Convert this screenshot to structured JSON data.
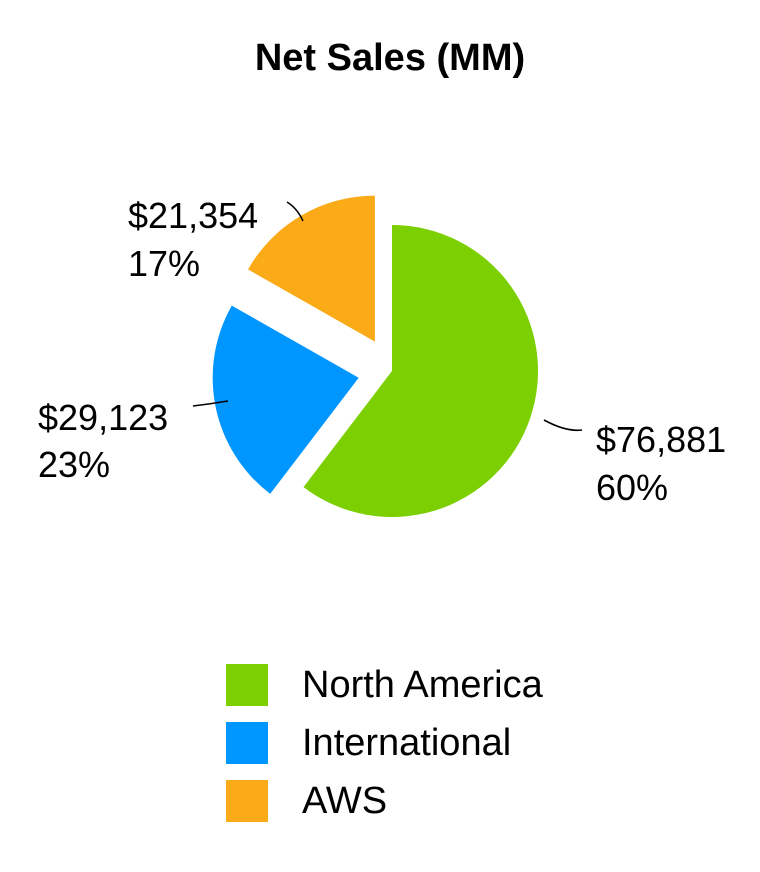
{
  "chart_data": {
    "type": "pie",
    "title": "Net Sales (MM)",
    "start_angle_deg": 0,
    "direction": "clockwise",
    "slices": [
      {
        "name": "North America",
        "value": 76881,
        "value_label": "$76,881",
        "percent_label": "60%",
        "color": "#7ccf00",
        "exploded": false
      },
      {
        "name": "International",
        "value": 29123,
        "value_label": "$29,123",
        "percent_label": "23%",
        "color": "#0096ff",
        "exploded": true
      },
      {
        "name": "AWS",
        "value": 21354,
        "value_label": "$21,354",
        "percent_label": "17%",
        "color": "#fbab18",
        "exploded": true
      }
    ],
    "legend": {
      "placement": "bottom",
      "entries": [
        "North America",
        "International",
        "AWS"
      ]
    }
  }
}
